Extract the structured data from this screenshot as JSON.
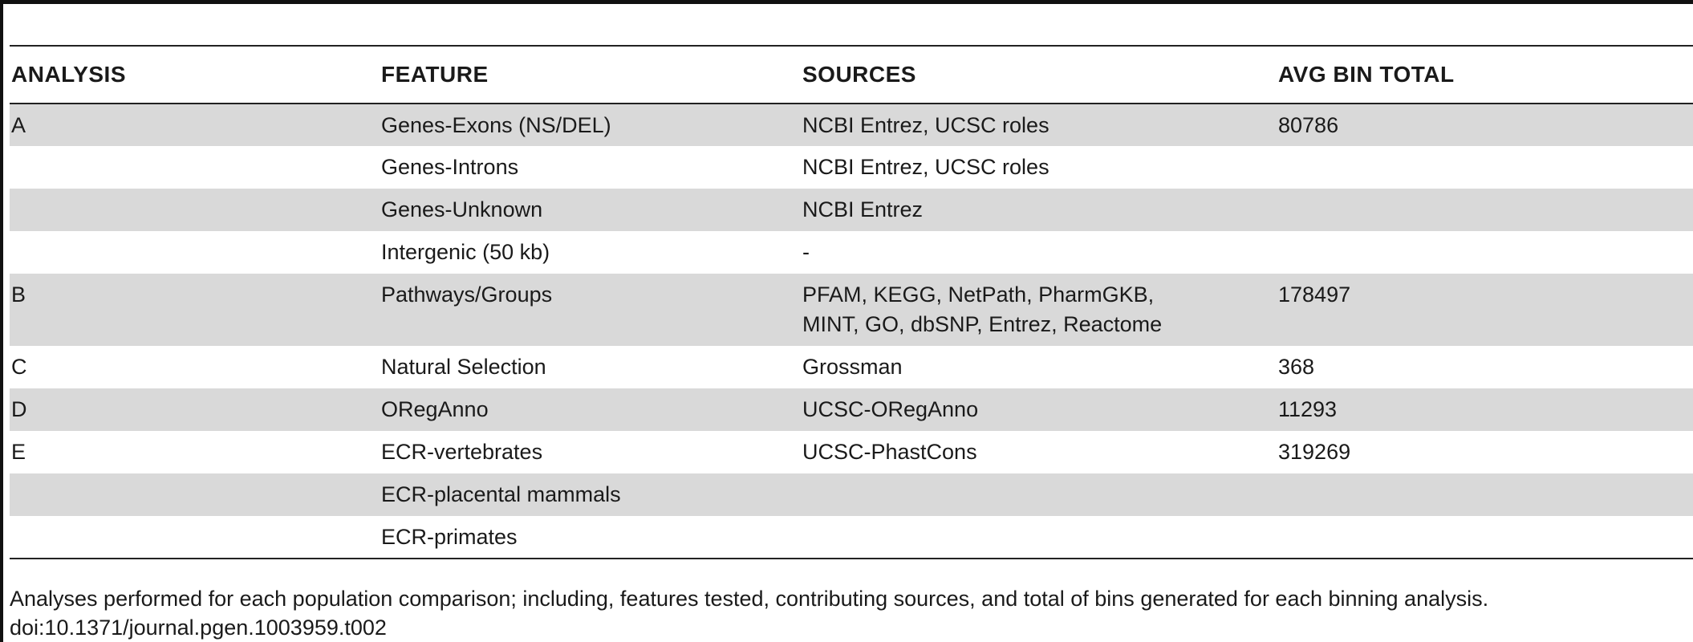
{
  "table": {
    "headers": [
      "ANALYSIS",
      "FEATURE",
      "SOURCES",
      "AVG BIN TOTAL"
    ],
    "rows": [
      {
        "analysis": "A",
        "feature": "Genes-Exons (NS/DEL)",
        "sources": "NCBI Entrez, UCSC roles",
        "avg_bin_total": "80786"
      },
      {
        "analysis": "",
        "feature": "Genes-Introns",
        "sources": "NCBI Entrez, UCSC roles",
        "avg_bin_total": ""
      },
      {
        "analysis": "",
        "feature": "Genes-Unknown",
        "sources": "NCBI Entrez",
        "avg_bin_total": ""
      },
      {
        "analysis": "",
        "feature": "Intergenic (50 kb)",
        "sources": "-",
        "avg_bin_total": ""
      },
      {
        "analysis": "B",
        "feature": "Pathways/Groups",
        "sources_line1": "PFAM, KEGG, NetPath, PharmGKB,",
        "sources_line2": "MINT, GO, dbSNP, Entrez, Reactome",
        "avg_bin_total": "178497"
      },
      {
        "analysis": "C",
        "feature": "Natural Selection",
        "sources": "Grossman",
        "avg_bin_total": "368"
      },
      {
        "analysis": "D",
        "feature": "ORegAnno",
        "sources": "UCSC-ORegAnno",
        "avg_bin_total": "11293"
      },
      {
        "analysis": "E",
        "feature": "ECR-vertebrates",
        "sources": "UCSC-PhastCons",
        "avg_bin_total": "319269"
      },
      {
        "analysis": "",
        "feature": "ECR-placental mammals",
        "sources": "",
        "avg_bin_total": ""
      },
      {
        "analysis": "",
        "feature": "ECR-primates",
        "sources": "",
        "avg_bin_total": ""
      }
    ]
  },
  "caption": {
    "text": "Analyses performed for each population comparison; including, features tested, contributing sources, and total of bins generated for each binning analysis.",
    "doi": "doi:10.1371/journal.pgen.1003959.t002"
  }
}
